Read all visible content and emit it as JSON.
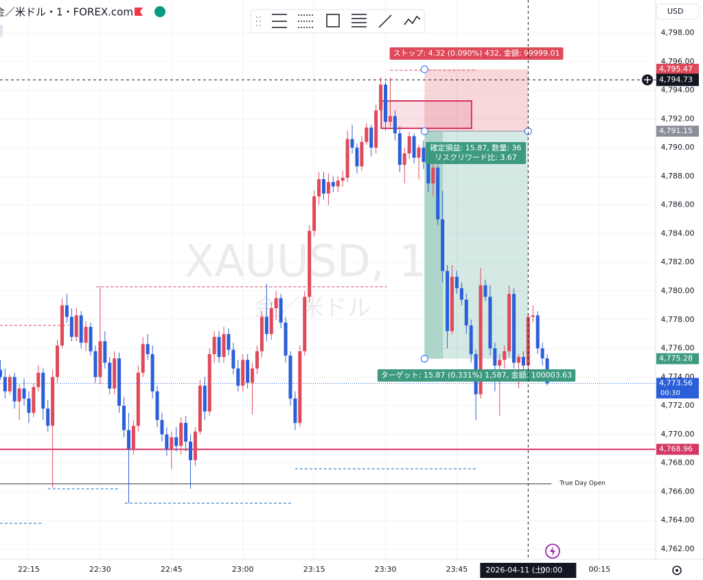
{
  "header": {
    "symbol": "金／米ドル・1・FOREX.com"
  },
  "chart_data": {
    "type": "candlestick",
    "watermark": "XAUUSD, 1",
    "watermark_sub": "金／米ドル",
    "currency": "USD",
    "up_color": "#e0495a",
    "down_color": "#2b5fd9",
    "grid": true,
    "xlim": [
      8.94,
      146.8
    ],
    "xticks": [
      {
        "value": 15,
        "label": "22:15"
      },
      {
        "value": 30,
        "label": "22:30"
      },
      {
        "value": 45,
        "label": "22:45"
      },
      {
        "value": 60,
        "label": "23:00"
      },
      {
        "value": 75,
        "label": "23:15"
      },
      {
        "value": 90,
        "label": "23:30"
      },
      {
        "value": 105,
        "label": "23:45"
      },
      {
        "value": 135,
        "label": "00:15"
      }
    ],
    "ylim": [
      4761.28,
      4800.3
    ],
    "yticks": [
      {
        "value": 4762,
        "label": "4,762.00"
      },
      {
        "value": 4764,
        "label": "4,764.00"
      },
      {
        "value": 4766,
        "label": "4,766.00"
      },
      {
        "value": 4768,
        "label": "4,768.00"
      },
      {
        "value": 4770,
        "label": "4,770.00"
      },
      {
        "value": 4772,
        "label": "4,772.00"
      },
      {
        "value": 4774,
        "label": "4,774.00"
      },
      {
        "value": 4776,
        "label": "4,776.00"
      },
      {
        "value": 4778,
        "label": "4,778.00"
      },
      {
        "value": 4780,
        "label": "4,780.00"
      },
      {
        "value": 4782,
        "label": "4,782.00"
      },
      {
        "value": 4784,
        "label": "4,784.00"
      },
      {
        "value": 4786,
        "label": "4,786.00"
      },
      {
        "value": 4788,
        "label": "4,788.00"
      },
      {
        "value": 4790,
        "label": "4,790.00"
      },
      {
        "value": 4792,
        "label": "4,792.00"
      },
      {
        "value": 4794,
        "label": "4,794.00"
      },
      {
        "value": 4796,
        "label": "4,796.00"
      },
      {
        "value": 4798,
        "label": "4,798.00"
      }
    ],
    "x": [
      9,
      10,
      11,
      12,
      13,
      14,
      15,
      16,
      17,
      18,
      19,
      20,
      21,
      22,
      23,
      24,
      25,
      26,
      27,
      28,
      29,
      30,
      31,
      32,
      33,
      34,
      35,
      36,
      37,
      38,
      39,
      40,
      41,
      42,
      43,
      44,
      45,
      46,
      47,
      48,
      49,
      50,
      51,
      52,
      53,
      54,
      55,
      56,
      57,
      58,
      59,
      60,
      61,
      62,
      63,
      64,
      65,
      66,
      67,
      68,
      69,
      70,
      71,
      72,
      73,
      74,
      75,
      76,
      77,
      78,
      79,
      80,
      81,
      82,
      83,
      84,
      85,
      86,
      87,
      88,
      89,
      90,
      91,
      92,
      93,
      94,
      95,
      96,
      97,
      98,
      99,
      100,
      101,
      102,
      103,
      104,
      105,
      106,
      107,
      108,
      109,
      110,
      111,
      112,
      113,
      114,
      115,
      116,
      117,
      118,
      119,
      120,
      121,
      122,
      123,
      124
    ],
    "open": [
      4774.5,
      4774.0,
      4773.0,
      4774.0,
      4772.3,
      4773.2,
      4772.5,
      4771.5,
      4773.3,
      4774.3,
      4771.8,
      4770.6,
      4774.0,
      4776.2,
      4779.0,
      4778.2,
      4776.8,
      4778.3,
      4776.4,
      4777.5,
      4775.8,
      4774.0,
      4776.5,
      4775.0,
      4773.2,
      4775.3,
      4772.0,
      4770.3,
      4769.0,
      4770.6,
      4774.3,
      4776.3,
      4775.6,
      4773.0,
      4771.0,
      4770.0,
      4769.0,
      4769.8,
      4769.2,
      4770.8,
      4769.5,
      4768.2,
      4770.2,
      4773.4,
      4771.6,
      4775.6,
      4776.8,
      4775.4,
      4777.0,
      4775.9,
      4774.6,
      4773.4,
      4775.2,
      4773.6,
      4774.6,
      4775.8,
      4778.2,
      4777.0,
      4778.8,
      4779.5,
      4777.8,
      4775.5,
      4772.5,
      4770.8,
      4775.8,
      4779.6,
      4784.2,
      4786.6,
      4787.8,
      4786.8,
      4787.6,
      4787.3,
      4787.7,
      4787.9,
      4790.6,
      4790.0,
      4788.7,
      4790.4,
      4791.4,
      4790.0,
      4792.6,
      4794.4,
      4791.8,
      4792.2,
      4791.0,
      4788.8,
      4789.6,
      4790.8,
      4789.3,
      4790.0,
      4789.0,
      4787.5,
      4788.6,
      4785.0,
      4781.4,
      4777.2,
      4781.0,
      4780.2,
      4779.4,
      4777.6,
      4775.6,
      4772.8,
      4780.4,
      4779.6,
      4776.0,
      4774.8,
      4775.2,
      4775.8,
      4779.8,
      4775.0,
      4775.4,
      4774.8,
      4778.2,
      4778.3,
      4776.0,
      4775.3
    ],
    "high": [
      4775.2,
      4774.6,
      4774.2,
      4774.3,
      4773.5,
      4773.9,
      4773.0,
      4773.6,
      4774.8,
      4774.6,
      4772.4,
      4774.5,
      4776.6,
      4779.5,
      4779.8,
      4778.8,
      4778.8,
      4778.6,
      4777.9,
      4777.8,
      4776.2,
      4780.3,
      4777.2,
      4775.4,
      4775.8,
      4775.7,
      4772.6,
      4771.5,
      4771.0,
      4774.8,
      4776.8,
      4777.0,
      4776.2,
      4773.4,
      4771.5,
      4770.5,
      4770.2,
      4770.5,
      4771.2,
      4771.3,
      4770.0,
      4770.5,
      4773.8,
      4774.0,
      4776.0,
      4777.2,
      4777.2,
      4777.5,
      4777.4,
      4776.4,
      4775.2,
      4775.6,
      4775.6,
      4775.0,
      4776.2,
      4778.6,
      4780.5,
      4779.2,
      4780.0,
      4779.8,
      4778.2,
      4775.8,
      4773.0,
      4776.2,
      4780.0,
      4784.6,
      4787.0,
      4788.3,
      4788.3,
      4788.2,
      4788.0,
      4788.0,
      4788.4,
      4791.2,
      4791.6,
      4790.3,
      4790.8,
      4791.7,
      4791.6,
      4793.0,
      4794.9,
      4794.6,
      4794.9,
      4792.6,
      4791.5,
      4790.0,
      4791.1,
      4791.0,
      4790.2,
      4790.5,
      4789.3,
      4789.0,
      4788.8,
      4787.0,
      4781.8,
      4781.8,
      4781.4,
      4780.6,
      4779.8,
      4778.0,
      4775.9,
      4781.6,
      4780.8,
      4780.4,
      4776.4,
      4775.6,
      4776.2,
      4780.4,
      4780.2,
      4775.6,
      4775.8,
      4778.4,
      4779.0,
      4778.6,
      4776.4,
      4775.6
    ],
    "low": [
      4773.8,
      4772.5,
      4772.8,
      4771.8,
      4771.0,
      4772.0,
      4770.8,
      4771.2,
      4773.0,
      4771.0,
      4770.2,
      4766.3,
      4773.6,
      4776.0,
      4777.8,
      4776.5,
      4776.5,
      4776.0,
      4775.8,
      4775.5,
      4773.6,
      4773.5,
      4774.6,
      4772.8,
      4772.8,
      4771.5,
      4769.8,
      4765.2,
      4768.6,
      4770.2,
      4774.0,
      4775.2,
      4772.5,
      4770.5,
      4769.5,
      4768.5,
      4767.6,
      4768.8,
      4768.6,
      4768.8,
      4766.2,
      4767.8,
      4770.0,
      4771.0,
      4771.3,
      4775.0,
      4775.0,
      4775.0,
      4775.5,
      4774.2,
      4773.0,
      4773.0,
      4773.2,
      4771.4,
      4774.2,
      4775.4,
      4776.5,
      4776.6,
      4778.0,
      4777.4,
      4775.0,
      4772.0,
      4770.3,
      4770.5,
      4775.5,
      4779.2,
      4783.8,
      4786.0,
      4786.4,
      4786.0,
      4786.9,
      4786.9,
      4787.3,
      4787.6,
      4789.6,
      4788.2,
      4788.4,
      4790.2,
      4789.4,
      4789.6,
      4792.2,
      4791.2,
      4791.5,
      4790.5,
      4788.3,
      4787.5,
      4789.2,
      4788.9,
      4787.8,
      4788.5,
      4786.9,
      4786.6,
      4784.6,
      4780.6,
      4776.0,
      4777.0,
      4779.8,
      4779.0,
      4777.0,
      4775.0,
      4771.0,
      4772.5,
      4779.3,
      4775.5,
      4773.0,
      4771.3,
      4774.6,
      4775.4,
      4774.6,
      4773.2,
      4774.4,
      4774.4,
      4777.8,
      4775.6,
      4774.8,
      4773.4
    ],
    "close": [
      4774.0,
      4773.0,
      4774.0,
      4772.3,
      4773.2,
      4772.5,
      4771.5,
      4773.3,
      4774.3,
      4771.8,
      4770.6,
      4774.0,
      4776.2,
      4779.0,
      4778.2,
      4776.8,
      4778.3,
      4776.4,
      4777.5,
      4775.8,
      4774.0,
      4776.5,
      4775.0,
      4773.2,
      4775.3,
      4772.0,
      4770.3,
      4769.0,
      4770.6,
      4774.3,
      4776.3,
      4775.6,
      4773.0,
      4771.0,
      4770.0,
      4769.0,
      4769.8,
      4769.2,
      4770.8,
      4769.5,
      4768.2,
      4770.2,
      4773.4,
      4771.6,
      4775.6,
      4776.8,
      4775.4,
      4777.0,
      4775.9,
      4774.6,
      4773.4,
      4775.2,
      4773.6,
      4774.6,
      4775.8,
      4778.2,
      4777.0,
      4778.8,
      4779.5,
      4777.8,
      4775.5,
      4772.5,
      4770.8,
      4775.8,
      4779.6,
      4784.2,
      4786.6,
      4787.8,
      4786.8,
      4787.6,
      4787.3,
      4787.7,
      4787.9,
      4790.6,
      4790.0,
      4788.7,
      4790.4,
      4791.4,
      4790.0,
      4792.6,
      4794.4,
      4791.8,
      4792.2,
      4791.0,
      4788.8,
      4789.6,
      4790.8,
      4789.3,
      4790.0,
      4789.0,
      4787.5,
      4788.6,
      4785.0,
      4781.4,
      4777.2,
      4781.0,
      4780.2,
      4779.4,
      4777.6,
      4775.6,
      4772.8,
      4780.4,
      4779.6,
      4776.0,
      4774.8,
      4775.2,
      4775.8,
      4779.8,
      4775.0,
      4775.4,
      4774.8,
      4778.2,
      4778.3,
      4776.0,
      4775.3,
      4773.56
    ],
    "levels": [
      {
        "value": 4777.6,
        "x": [
          8.94,
          23.4
        ],
        "color": "#e57f8b",
        "style": "dashed"
      },
      {
        "value": 4780.3,
        "x": [
          29.2,
          90.3
        ],
        "color": "#e57f8b",
        "style": "dashed"
      },
      {
        "value": 4795.4,
        "x": [
          91.0,
          109.3
        ],
        "color": "#e57f8b",
        "style": "dashed"
      },
      {
        "value": 4763.8,
        "x": [
          8.94,
          17.9
        ],
        "color": "#5b9bd5",
        "style": "dashed"
      },
      {
        "value": 4766.2,
        "x": [
          19.0,
          34.2
        ],
        "color": "#5b9bd5",
        "style": "dashed"
      },
      {
        "value": 4765.2,
        "x": [
          35.2,
          70.3
        ],
        "color": "#5b9bd5",
        "style": "dashed"
      },
      {
        "value": 4767.6,
        "x": [
          71.0,
          109.3
        ],
        "color": "#5b9bd5",
        "style": "dashed"
      }
    ],
    "true_day_open": {
      "value": 4766.55,
      "x": [
        8.94,
        124.9
      ],
      "label": "True Day Open",
      "color": "#333333"
    },
    "rectangle": {
      "x": [
        89.1,
        108.1
      ],
      "y": [
        4791.35,
        4793.26
      ],
      "color": "#d6335a"
    },
    "position": {
      "x": [
        98.2,
        120
      ],
      "entry": 4791.15,
      "stop": 4795.47,
      "target": 4775.28,
      "stop_label": "ストップ: 4.32 (0.090%) 432, 金額: 99999.01",
      "entry_labels": [
        "確定損益: 15.87, 数量: 36",
        "リスクリワード比: 3.67"
      ],
      "target_label": "ターゲット: 15.87 (0.331%) 1,587, 金額: 100003.63",
      "stop_color": "#e0495a",
      "target_color": "#3d9a80"
    },
    "price_tags": [
      {
        "value": 4795.47,
        "label": "4,795.47",
        "color": "#e0495a"
      },
      {
        "value": 4791.15,
        "label": "4,791.15",
        "color": "#8a8f98"
      },
      {
        "value": 4775.28,
        "label": "4,775.28",
        "color": "#3d9a80"
      },
      {
        "value": 4768.96,
        "label": "4,768.96",
        "color": "#d63864"
      }
    ],
    "support_line": {
      "value": 4768.96,
      "color": "#d63864"
    },
    "current_price": {
      "value": 4773.56,
      "label": "4,773.56",
      "countdown": "00:30",
      "color": "#2b5fd9"
    },
    "crosshair": {
      "x": 120,
      "date_label": "2026-04-11 (土)",
      "time_label": "00:00",
      "y": 4794.73,
      "y_label": "4,794.73"
    }
  }
}
